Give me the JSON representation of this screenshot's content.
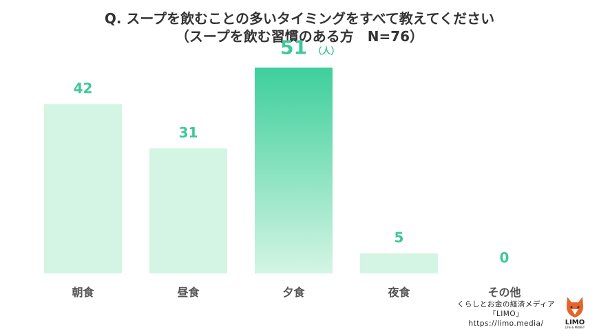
{
  "title": {
    "line1": "Q. スープを飲むことの多いタイミングをすべて教えてください",
    "line2": "（スープを飲む習慣のある方　N=76）"
  },
  "chart_data": {
    "type": "bar",
    "categories": [
      "朝食",
      "昼食",
      "夕食",
      "夜食",
      "その他"
    ],
    "values": [
      42,
      31,
      51,
      5,
      0
    ],
    "unit": "（人）",
    "highlight_index": 2,
    "ylim": [
      0,
      55
    ],
    "grid": false,
    "colors": {
      "bar": "#d4f5e4",
      "highlight_top": "#3ecf9c",
      "highlight_bottom": "#d4f5e4",
      "label": "#3fc79a",
      "category_label": "#555555"
    }
  },
  "brand": {
    "line1": "くらしとお金の経済メディア",
    "line2": "「LIMO」",
    "url": "https://limo.media/",
    "logo_text": "LIMO",
    "logo_sub": "LIFE & MONEY",
    "logo_color": "#e8622a",
    "icon": "fox-logo-icon"
  }
}
